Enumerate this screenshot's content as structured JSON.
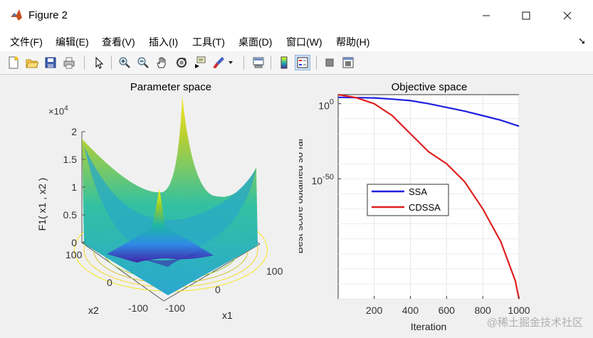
{
  "window": {
    "title": "Figure 2",
    "icon": "matlab-icon"
  },
  "menu": [
    "文件(F)",
    "编辑(E)",
    "查看(V)",
    "插入(I)",
    "工具(T)",
    "桌面(D)",
    "窗口(W)",
    "帮助(H)"
  ],
  "toolbar_icons": [
    "new-figure-icon",
    "open-file-icon",
    "save-icon",
    "print-icon",
    "select-arrow-icon",
    "zoom-in-icon",
    "zoom-out-icon",
    "pan-hand-icon",
    "rotate-3d-icon",
    "data-cursor-icon",
    "brush-icon",
    "brush-dropdown-icon",
    "link-plot-icon",
    "colorbar-icon",
    "legend-icon",
    "hide-plot-tools-icon",
    "show-plot-tools-icon"
  ],
  "chart_data": [
    {
      "type": "surface",
      "title": "Parameter space",
      "zlabel": "F1( x1 , x2 )",
      "xlabel": "x1",
      "ylabel": "x2",
      "z_exponent_label": "×10",
      "z_exponent": "4",
      "z_ticks": [
        "0",
        "0.5",
        "1",
        "1.5",
        "2"
      ],
      "x_ticks": [
        "-100",
        "0",
        "100"
      ],
      "y_ticks": [
        "-100",
        "0",
        "100"
      ],
      "x_range": [
        -100,
        100
      ],
      "y_range": [
        -100,
        100
      ],
      "z_range": [
        0,
        20000
      ],
      "colormap": "parula",
      "contours_on_floor": true
    },
    {
      "type": "line",
      "title": "Objective space",
      "xlabel": "Iteration",
      "ylabel": "Best score obtained so far",
      "y_scale": "log",
      "x_range": [
        1,
        1000
      ],
      "x_ticks": [
        "200",
        "400",
        "600",
        "800",
        "1000"
      ],
      "y_ticks": [
        {
          "base": "10",
          "exp": "0"
        },
        {
          "base": "10",
          "exp": "-50"
        }
      ],
      "grid": true,
      "legend_position": "center-left",
      "series": [
        {
          "name": "SSA",
          "color": "#1f1fe0",
          "x": [
            1,
            100,
            200,
            300,
            400,
            500,
            600,
            700,
            800,
            900,
            1000
          ],
          "log10_y": [
            4.2,
            4.0,
            3.8,
            3.0,
            2.0,
            0.0,
            -2.5,
            -5.0,
            -8.0,
            -11.0,
            -15.0
          ]
        },
        {
          "name": "CDSSA",
          "color": "#e01f1f",
          "x": [
            1,
            100,
            200,
            300,
            400,
            500,
            600,
            700,
            800,
            900,
            940,
            980,
            1000
          ],
          "log10_y": [
            6.0,
            4.0,
            0.0,
            -8.0,
            -20.0,
            -32.0,
            -40.0,
            -52.0,
            -70.0,
            -92.0,
            -105.0,
            -118.0,
            -130.0
          ]
        }
      ]
    }
  ],
  "watermark": "@稀土掘金技术社区"
}
